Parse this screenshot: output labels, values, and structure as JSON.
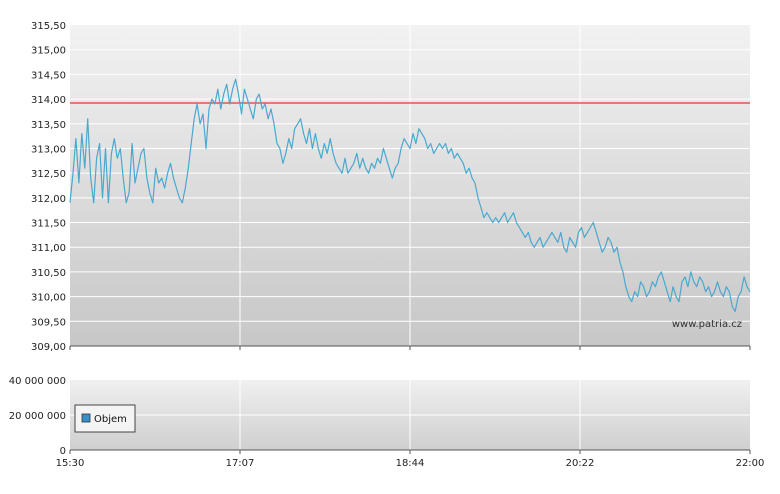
{
  "watermark": "www.patria.cz",
  "legend": {
    "label": "Objem"
  },
  "colors": {
    "price_line": "#4aa8d0",
    "reference_line": "#e03b2a",
    "legend_swatch": "#3a8fc8",
    "grid": "#ffffff"
  },
  "chart_data": [
    {
      "type": "line",
      "ylim": [
        309.0,
        315.5
      ],
      "y_ticks": [
        "315,50",
        "315,00",
        "314,50",
        "314,00",
        "313,50",
        "313,00",
        "312,50",
        "312,00",
        "311,50",
        "311,00",
        "310,50",
        "310,00",
        "309,50",
        "309,00"
      ],
      "x_ticks": [
        "15:30",
        "17:07",
        "18:44",
        "20:22",
        "22:00"
      ],
      "reference_value": 313.92,
      "grid": true,
      "series": [
        {
          "values": [
            311.9,
            312.5,
            313.2,
            312.3,
            313.3,
            312.6,
            313.6,
            312.4,
            311.9,
            312.8,
            313.1,
            312.0,
            313.0,
            311.9,
            312.9,
            313.2,
            312.8,
            313.0,
            312.4,
            311.9,
            312.1,
            313.1,
            312.3,
            312.6,
            312.9,
            313.0,
            312.4,
            312.1,
            311.9,
            312.6,
            312.3,
            312.4,
            312.2,
            312.5,
            312.7,
            312.4,
            312.2,
            312.0,
            311.9,
            312.2,
            312.6,
            313.1,
            313.6,
            313.9,
            313.5,
            313.7,
            313.0,
            313.8,
            314.0,
            313.9,
            314.2,
            313.8,
            314.1,
            314.3,
            313.9,
            314.2,
            314.4,
            314.1,
            313.7,
            314.2,
            314.0,
            313.8,
            313.6,
            314.0,
            314.1,
            313.8,
            313.9,
            313.6,
            313.8,
            313.5,
            313.1,
            313.0,
            312.7,
            312.9,
            313.2,
            313.0,
            313.4,
            313.5,
            313.6,
            313.3,
            313.1,
            313.4,
            313.0,
            313.3,
            313.0,
            312.8,
            313.1,
            312.9,
            313.2,
            312.9,
            312.7,
            312.6,
            312.5,
            312.8,
            312.5,
            312.6,
            312.7,
            312.9,
            312.6,
            312.8,
            312.6,
            312.5,
            312.7,
            312.6,
            312.8,
            312.7,
            313.0,
            312.8,
            312.6,
            312.4,
            312.6,
            312.7,
            313.0,
            313.2,
            313.1,
            313.0,
            313.3,
            313.1,
            313.4,
            313.3,
            313.2,
            313.0,
            313.1,
            312.9,
            313.0,
            313.1,
            313.0,
            313.1,
            312.9,
            313.0,
            312.8,
            312.9,
            312.8,
            312.7,
            312.5,
            312.6,
            312.4,
            312.3,
            312.0,
            311.8,
            311.6,
            311.7,
            311.6,
            311.5,
            311.6,
            311.5,
            311.6,
            311.7,
            311.5,
            311.6,
            311.7,
            311.5,
            311.4,
            311.3,
            311.2,
            311.3,
            311.1,
            311.0,
            311.1,
            311.2,
            311.0,
            311.1,
            311.2,
            311.3,
            311.2,
            311.1,
            311.3,
            311.0,
            310.9,
            311.2,
            311.1,
            311.0,
            311.3,
            311.4,
            311.2,
            311.3,
            311.4,
            311.5,
            311.3,
            311.1,
            310.9,
            311.0,
            311.2,
            311.1,
            310.9,
            311.0,
            310.7,
            310.5,
            310.2,
            310.0,
            309.9,
            310.1,
            310.0,
            310.3,
            310.2,
            310.0,
            310.1,
            310.3,
            310.2,
            310.4,
            310.5,
            310.3,
            310.1,
            309.9,
            310.2,
            310.0,
            309.9,
            310.3,
            310.4,
            310.2,
            310.5,
            310.3,
            310.2,
            310.4,
            310.3,
            310.1,
            310.2,
            310.0,
            310.1,
            310.3,
            310.1,
            310.0,
            310.2,
            310.1,
            309.8,
            309.7,
            310.0,
            310.1,
            310.4,
            310.2,
            310.1
          ]
        }
      ]
    },
    {
      "type": "bar",
      "ylim": [
        0,
        40000000
      ],
      "y_ticks": [
        "40 000 000",
        "20 000 000",
        "0"
      ],
      "x_ticks": [
        "15:30",
        "17:07",
        "18:44",
        "20:22",
        "22:00"
      ],
      "series": [
        {
          "name": "Objem",
          "values": []
        }
      ]
    }
  ]
}
